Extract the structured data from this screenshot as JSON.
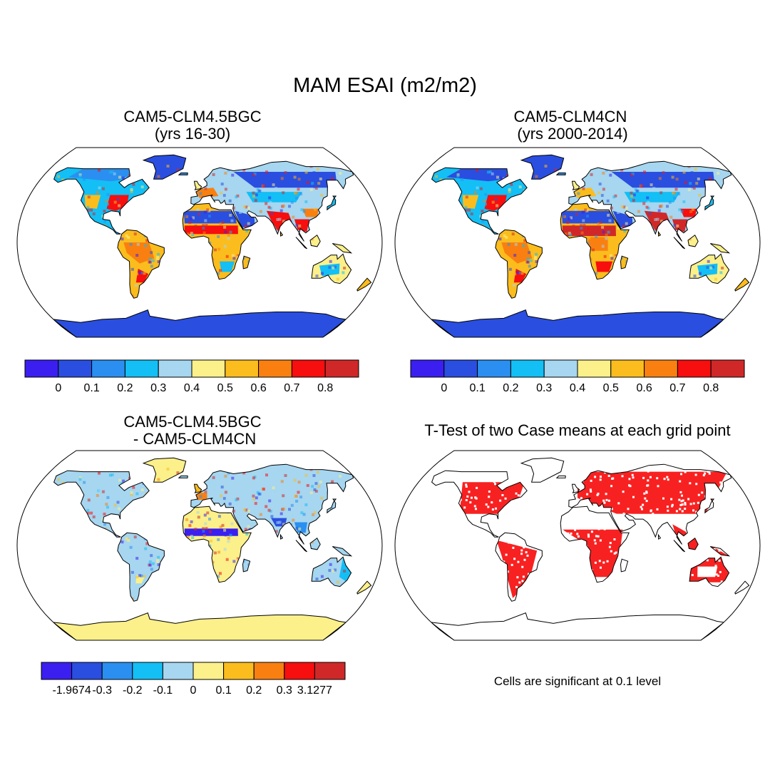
{
  "title": "MAM ESAI (m2/m2)",
  "panels": [
    {
      "id": "p1",
      "title_line1": "CAM5-CLM4.5BGC",
      "title_line2": "(yrs 16-30)",
      "type": "field"
    },
    {
      "id": "p2",
      "title_line1": "CAM5-CLM4CN",
      "title_line2": " (yrs 2000-2014)",
      "type": "field"
    },
    {
      "id": "p3",
      "title_line1": "CAM5-CLM4.5BGC",
      "title_line2": " - CAM5-CLM4CN",
      "type": "difference"
    },
    {
      "id": "p4",
      "title_line1": "T-Test of two Case means at each grid point",
      "title_line2": "",
      "type": "significance"
    }
  ],
  "colorbar_field": {
    "colors": [
      "#3a1ff0",
      "#2a4ee0",
      "#2a8ff0",
      "#13bff5",
      "#a6d6f0",
      "#fbf08a",
      "#fbbd1d",
      "#f98010",
      "#f70e0e",
      "#d02828"
    ],
    "labels": [
      "0",
      "0.1",
      "0.2",
      "0.3",
      "0.4",
      "0.5",
      "0.6",
      "0.7",
      "0.8"
    ]
  },
  "colorbar_diff": {
    "colors": [
      "#3a1ff0",
      "#2a4ee0",
      "#2a8ff0",
      "#13bff5",
      "#a6d6f0",
      "#fbf08a",
      "#fbbd1d",
      "#f98010",
      "#f70e0e",
      "#d02828"
    ],
    "labels": [
      "-1.9674",
      "-0.3",
      "-0.2",
      "-0.1",
      "0",
      "0.1",
      "0.2",
      "0.3",
      "3.1277"
    ]
  },
  "significance_note": "Cells are significant at 0.1 level",
  "significance_color": "#f70e0e"
}
